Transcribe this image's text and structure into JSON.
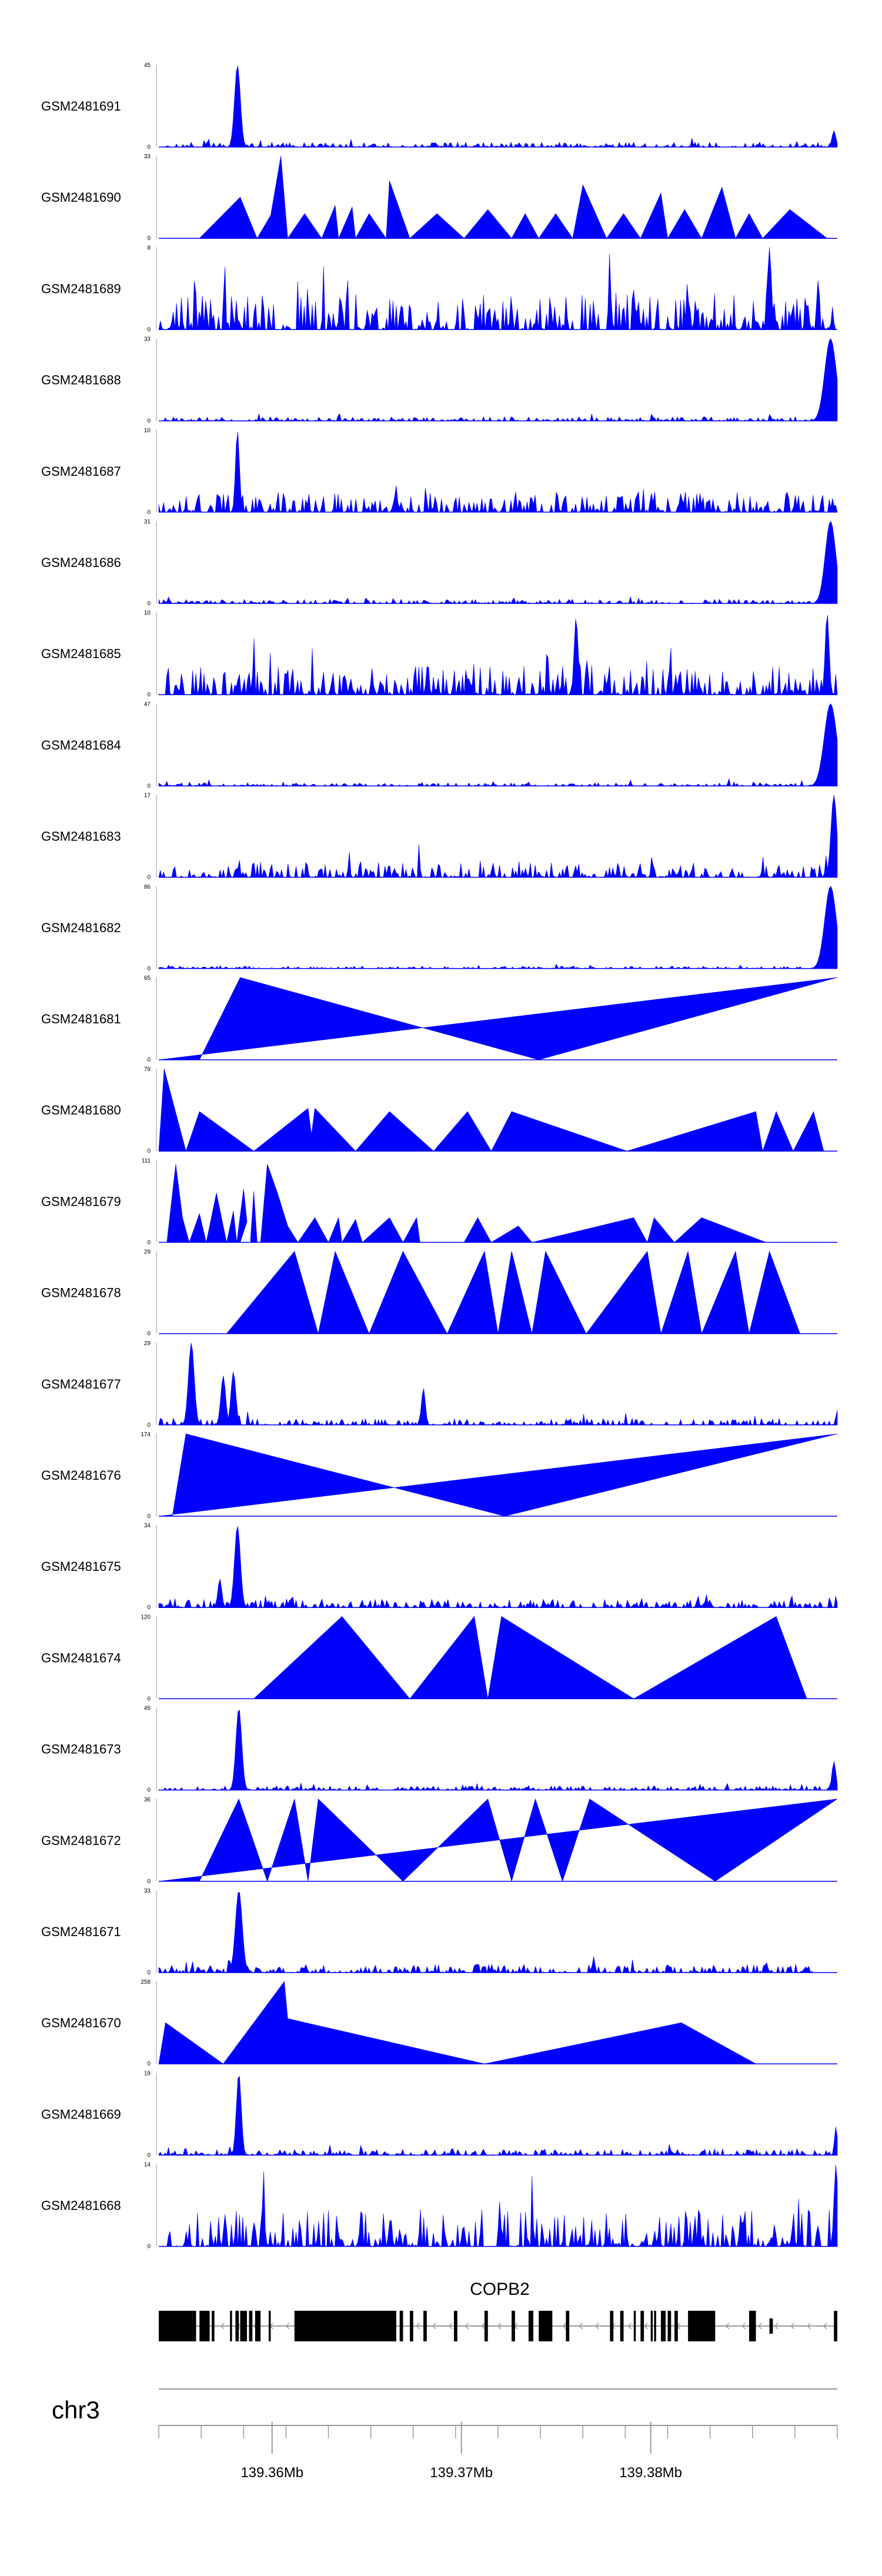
{
  "chart_data": {
    "type": "area",
    "description_free": true,
    "fill_color": "#0000ff",
    "tracks": [
      {
        "name": "GSM2481691",
        "ymax": 45,
        "ymin": 0,
        "style": "noise",
        "seed": 11,
        "base": 0.06,
        "spikes": [
          {
            "x": 0.116,
            "h": 1.0,
            "w": 0.006
          },
          {
            "x": 0.995,
            "h": 0.2,
            "w": 0.004
          }
        ]
      },
      {
        "name": "GSM2481690",
        "ymax": 33,
        "ymin": 0,
        "style": "segments",
        "start": 0.06,
        "end": 0.985,
        "peaks": [
          [
            0.06,
            0
          ],
          [
            0.12,
            0.5
          ],
          [
            0.145,
            0
          ],
          [
            0.165,
            0.28
          ],
          [
            0.18,
            1.0
          ],
          [
            0.19,
            0
          ],
          [
            0.215,
            0.3
          ],
          [
            0.24,
            0
          ],
          [
            0.26,
            0.4
          ],
          [
            0.265,
            0
          ],
          [
            0.285,
            0.38
          ],
          [
            0.29,
            0
          ],
          [
            0.31,
            0.3
          ],
          [
            0.335,
            0
          ],
          [
            0.34,
            0.7
          ],
          [
            0.37,
            0
          ],
          [
            0.41,
            0.3
          ],
          [
            0.45,
            0
          ],
          [
            0.485,
            0.35
          ],
          [
            0.52,
            0
          ],
          [
            0.54,
            0.3
          ],
          [
            0.56,
            0
          ],
          [
            0.585,
            0.3
          ],
          [
            0.61,
            0
          ],
          [
            0.625,
            0.65
          ],
          [
            0.66,
            0
          ],
          [
            0.685,
            0.3
          ],
          [
            0.71,
            0
          ],
          [
            0.74,
            0.55
          ],
          [
            0.75,
            0
          ],
          [
            0.775,
            0.35
          ],
          [
            0.8,
            0
          ],
          [
            0.83,
            0.62
          ],
          [
            0.85,
            0
          ],
          [
            0.87,
            0.3
          ],
          [
            0.89,
            0
          ],
          [
            0.93,
            0.35
          ],
          [
            0.985,
            0
          ]
        ]
      },
      {
        "name": "GSM2481689",
        "ymax": 8,
        "ymin": 0,
        "style": "noise",
        "seed": 23,
        "base": 0.45,
        "spikes": [
          {
            "x": 0.9,
            "h": 1.0,
            "w": 0.004
          }
        ]
      },
      {
        "name": "GSM2481688",
        "ymax": 33,
        "ymin": 0,
        "style": "noise",
        "seed": 31,
        "base": 0.05,
        "spikes": [
          {
            "x": 0.99,
            "h": 1.0,
            "w": 0.012
          }
        ]
      },
      {
        "name": "GSM2481687",
        "ymax": 10,
        "ymin": 0,
        "style": "noise",
        "seed": 37,
        "base": 0.25,
        "spikes": [
          {
            "x": 0.116,
            "h": 1.0,
            "w": 0.004
          }
        ]
      },
      {
        "name": "GSM2481686",
        "ymax": 31,
        "ymin": 0,
        "style": "noise",
        "seed": 41,
        "base": 0.05,
        "spikes": [
          {
            "x": 0.99,
            "h": 1.0,
            "w": 0.011
          }
        ]
      },
      {
        "name": "GSM2481685",
        "ymax": 10,
        "ymin": 0,
        "style": "noise",
        "seed": 43,
        "base": 0.35,
        "spikes": [
          {
            "x": 0.615,
            "h": 0.95,
            "w": 0.004
          },
          {
            "x": 0.985,
            "h": 1.0,
            "w": 0.004
          }
        ]
      },
      {
        "name": "GSM2481684",
        "ymax": 47,
        "ymin": 0,
        "style": "noise",
        "seed": 47,
        "base": 0.04,
        "spikes": [
          {
            "x": 0.99,
            "h": 1.0,
            "w": 0.013
          }
        ]
      },
      {
        "name": "GSM2481683",
        "ymax": 17,
        "ymin": 0,
        "style": "noise",
        "seed": 53,
        "base": 0.18,
        "spikes": [
          {
            "x": 0.995,
            "h": 1.0,
            "w": 0.006
          }
        ]
      },
      {
        "name": "GSM2481682",
        "ymax": 86,
        "ymin": 0,
        "style": "noise",
        "seed": 59,
        "base": 0.03,
        "spikes": [
          {
            "x": 0.99,
            "h": 1.0,
            "w": 0.012
          }
        ]
      },
      {
        "name": "GSM2481681",
        "ymax": 65,
        "ymin": 0,
        "style": "segments",
        "start": 0.06,
        "end": 1.0,
        "peaks": [
          [
            0.06,
            0
          ],
          [
            0.12,
            1.0
          ],
          [
            0.56,
            0
          ],
          [
            1.0,
            1.0
          ]
        ]
      },
      {
        "name": "GSM2481680",
        "ymax": 79,
        "ymin": 0,
        "style": "segments",
        "start": 0.0,
        "end": 0.98,
        "peaks": [
          [
            0.0,
            0
          ],
          [
            0.008,
            1.0
          ],
          [
            0.04,
            0
          ],
          [
            0.06,
            0.48
          ],
          [
            0.14,
            0
          ],
          [
            0.22,
            0.52
          ],
          [
            0.225,
            0.2
          ],
          [
            0.23,
            0.52
          ],
          [
            0.29,
            0
          ],
          [
            0.34,
            0.48
          ],
          [
            0.405,
            0
          ],
          [
            0.455,
            0.48
          ],
          [
            0.49,
            0
          ],
          [
            0.52,
            0.48
          ],
          [
            0.69,
            0
          ],
          [
            0.88,
            0.48
          ],
          [
            0.89,
            0
          ],
          [
            0.91,
            0.48
          ],
          [
            0.935,
            0
          ],
          [
            0.965,
            0.48
          ],
          [
            0.98,
            0
          ]
        ]
      },
      {
        "name": "GSM2481679",
        "ymax": 111,
        "ymin": 0,
        "style": "segments",
        "start": 0.012,
        "end": 0.895,
        "peaks": [
          [
            0.012,
            0
          ],
          [
            0.025,
            0.95
          ],
          [
            0.035,
            0.3
          ],
          [
            0.045,
            0
          ],
          [
            0.06,
            0.35
          ],
          [
            0.07,
            0
          ],
          [
            0.085,
            0.6
          ],
          [
            0.1,
            0
          ],
          [
            0.11,
            0.38
          ],
          [
            0.115,
            0
          ],
          [
            0.125,
            0.65
          ],
          [
            0.13,
            0.25
          ],
          [
            0.12,
            0
          ],
          [
            0.135,
            0
          ],
          [
            0.14,
            0.62
          ],
          [
            0.145,
            0
          ],
          [
            0.15,
            0
          ],
          [
            0.16,
            0.95
          ],
          [
            0.175,
            0.6
          ],
          [
            0.19,
            0.2
          ],
          [
            0.205,
            0
          ],
          [
            0.23,
            0.3
          ],
          [
            0.25,
            0
          ],
          [
            0.265,
            0.3
          ],
          [
            0.27,
            0
          ],
          [
            0.29,
            0.28
          ],
          [
            0.3,
            0
          ],
          [
            0.34,
            0.3
          ],
          [
            0.36,
            0
          ],
          [
            0.38,
            0.3
          ],
          [
            0.385,
            0
          ],
          [
            0.4,
            0
          ],
          [
            0.38,
            0
          ],
          [
            0.4,
            0
          ],
          [
            0.45,
            0
          ],
          [
            0.47,
            0.3
          ],
          [
            0.49,
            0
          ],
          [
            0.53,
            0.2
          ],
          [
            0.55,
            0
          ],
          [
            0.7,
            0.3
          ],
          [
            0.72,
            0
          ],
          [
            0.73,
            0.3
          ],
          [
            0.76,
            0
          ],
          [
            0.8,
            0.3
          ],
          [
            0.895,
            0
          ]
        ]
      },
      {
        "name": "GSM2481678",
        "ymax": 29,
        "ymin": 0,
        "style": "segments",
        "start": 0.1,
        "end": 0.945,
        "peaks": [
          [
            0.1,
            0
          ],
          [
            0.2,
            1.0
          ],
          [
            0.235,
            0
          ],
          [
            0.26,
            1.0
          ],
          [
            0.31,
            0
          ],
          [
            0.36,
            1.0
          ],
          [
            0.425,
            0
          ],
          [
            0.48,
            1.0
          ],
          [
            0.5,
            0
          ],
          [
            0.52,
            1.0
          ],
          [
            0.55,
            0
          ],
          [
            0.57,
            1.0
          ],
          [
            0.63,
            0
          ],
          [
            0.72,
            1.0
          ],
          [
            0.74,
            0
          ],
          [
            0.78,
            1.0
          ],
          [
            0.8,
            0
          ],
          [
            0.85,
            1.0
          ],
          [
            0.87,
            0
          ],
          [
            0.9,
            1.0
          ],
          [
            0.945,
            0
          ]
        ]
      },
      {
        "name": "GSM2481677",
        "ymax": 29,
        "ymin": 0,
        "style": "noise",
        "seed": 67,
        "base": 0.08,
        "spikes": [
          {
            "x": 0.048,
            "h": 1.0,
            "w": 0.006
          },
          {
            "x": 0.095,
            "h": 0.6,
            "w": 0.005
          },
          {
            "x": 0.11,
            "h": 0.65,
            "w": 0.005
          },
          {
            "x": 0.39,
            "h": 0.45,
            "w": 0.004
          },
          {
            "x": 1.0,
            "h": 0.18,
            "w": 0.003
          }
        ]
      },
      {
        "name": "GSM2481676",
        "ymax": 174,
        "ymin": 0,
        "style": "segments",
        "start": 0.02,
        "end": 1.0,
        "peaks": [
          [
            0.02,
            0
          ],
          [
            0.04,
            1.0
          ],
          [
            0.51,
            0
          ],
          [
            1.0,
            1.0
          ]
        ]
      },
      {
        "name": "GSM2481675",
        "ymax": 34,
        "ymin": 0,
        "style": "noise",
        "seed": 71,
        "base": 0.1,
        "spikes": [
          {
            "x": 0.116,
            "h": 1.0,
            "w": 0.006
          },
          {
            "x": 0.09,
            "h": 0.35,
            "w": 0.004
          }
        ]
      },
      {
        "name": "GSM2481674",
        "ymax": 120,
        "ymin": 0,
        "style": "segments",
        "start": 0.14,
        "end": 0.955,
        "peaks": [
          [
            0.14,
            0
          ],
          [
            0.27,
            1.0
          ],
          [
            0.37,
            0
          ],
          [
            0.465,
            1.0
          ],
          [
            0.485,
            0
          ],
          [
            0.505,
            1.0
          ],
          [
            0.7,
            0
          ],
          [
            0.91,
            1.0
          ],
          [
            0.955,
            0
          ]
        ]
      },
      {
        "name": "GSM2481673",
        "ymax": 45,
        "ymin": 0,
        "style": "noise",
        "seed": 79,
        "base": 0.05,
        "spikes": [
          {
            "x": 0.118,
            "h": 1.0,
            "w": 0.006
          },
          {
            "x": 0.995,
            "h": 0.35,
            "w": 0.004
          }
        ]
      },
      {
        "name": "GSM2481672",
        "ymax": 36,
        "ymin": 0,
        "style": "segments",
        "start": 0.06,
        "end": 1.0,
        "peaks": [
          [
            0.06,
            0
          ],
          [
            0.118,
            1.0
          ],
          [
            0.16,
            0
          ],
          [
            0.2,
            1.0
          ],
          [
            0.22,
            0
          ],
          [
            0.235,
            1.0
          ],
          [
            0.36,
            0
          ],
          [
            0.485,
            1.0
          ],
          [
            0.52,
            0
          ],
          [
            0.555,
            1.0
          ],
          [
            0.595,
            0
          ],
          [
            0.635,
            1.0
          ],
          [
            0.82,
            0
          ],
          [
            1.0,
            1.0
          ]
        ]
      },
      {
        "name": "GSM2481671",
        "ymax": 33,
        "ymin": 0,
        "style": "noise",
        "seed": 83,
        "base": 0.1,
        "spikes": [
          {
            "x": 0.118,
            "h": 1.0,
            "w": 0.007
          }
        ],
        "end": 0.965
      },
      {
        "name": "GSM2481670",
        "ymax": 258,
        "ymin": 0,
        "style": "segments",
        "start": 0.0,
        "end": 0.88,
        "peaks": [
          [
            0.0,
            0
          ],
          [
            0.01,
            0.5
          ],
          [
            0.095,
            0
          ],
          [
            0.185,
            1.0
          ],
          [
            0.19,
            0.55
          ],
          [
            0.48,
            0
          ],
          [
            0.77,
            0.5
          ],
          [
            0.88,
            0
          ]
        ]
      },
      {
        "name": "GSM2481669",
        "ymax": 19,
        "ymin": 0,
        "style": "noise",
        "seed": 89,
        "base": 0.08,
        "spikes": [
          {
            "x": 0.118,
            "h": 1.0,
            "w": 0.005
          },
          {
            "x": 0.998,
            "h": 0.35,
            "w": 0.003
          }
        ]
      },
      {
        "name": "GSM2481668",
        "ymax": 14,
        "ymin": 0,
        "style": "noise",
        "seed": 97,
        "base": 0.45,
        "spikes": [
          {
            "x": 0.998,
            "h": 1.0,
            "w": 0.004
          }
        ]
      }
    ],
    "gene": {
      "name": "COPB2",
      "exons": [
        [
          0.0,
          0.05
        ],
        [
          0.05,
          0.055
        ],
        [
          0.06,
          0.075
        ],
        [
          0.078,
          0.082
        ],
        [
          0.105,
          0.108
        ],
        [
          0.113,
          0.118
        ],
        [
          0.12,
          0.13
        ],
        [
          0.133,
          0.138
        ],
        [
          0.142,
          0.15
        ],
        [
          0.162,
          0.165
        ],
        [
          0.2,
          0.35
        ],
        [
          0.355,
          0.36
        ],
        [
          0.37,
          0.375
        ],
        [
          0.39,
          0.395
        ],
        [
          0.435,
          0.44
        ],
        [
          0.48,
          0.485
        ],
        [
          0.52,
          0.525
        ],
        [
          0.545,
          0.552
        ],
        [
          0.56,
          0.58
        ],
        [
          0.6,
          0.605
        ],
        [
          0.665,
          0.67
        ],
        [
          0.68,
          0.685
        ],
        [
          0.7,
          0.703
        ],
        [
          0.71,
          0.715
        ],
        [
          0.725,
          0.728
        ],
        [
          0.74,
          0.747
        ],
        [
          0.75,
          0.755
        ],
        [
          0.76,
          0.765
        ],
        [
          0.73,
          0.733
        ],
        [
          0.78,
          0.82
        ],
        [
          0.87,
          0.88
        ],
        [
          0.995,
          1.0
        ]
      ],
      "thin_exons": [
        [
          0.05,
          0.055
        ],
        [
          0.9,
          0.905
        ]
      ],
      "strand": "-"
    },
    "axis": {
      "chromosome": "chr3",
      "tick_labels": [
        "139.36Mb",
        "139.37Mb",
        "139.38Mb"
      ],
      "tick_positions_frac": [
        0.167,
        0.446,
        0.725
      ],
      "minor_tick_count": 16
    }
  }
}
